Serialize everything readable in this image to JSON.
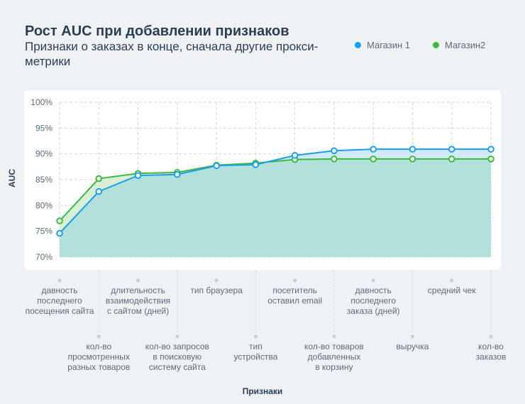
{
  "chart_data": {
    "type": "line",
    "title": "Рост AUC при добавлении признаков",
    "subtitle": "Признаки о заказах в конце, сначала другие прокси-метрики",
    "xlabel": "Признаки",
    "ylabel": "AUC",
    "ylim": [
      70,
      100
    ],
    "yticks": [
      "100%",
      "95%",
      "90%",
      "85%",
      "80%",
      "75%",
      "70%"
    ],
    "ytick_values": [
      100,
      95,
      90,
      85,
      80,
      75,
      70
    ],
    "grid": true,
    "legend_position": "top-right",
    "categories": [
      "давность последнего посещения сайта",
      "кол-во просмотренных разных товаров",
      "длительность взаимодействия с сайтом (дней)",
      "кол-во запросов в поисковую систему сайта",
      "тип браузера",
      "тип устройства",
      "посетитель оставил email",
      "кол-во товаров добавленных в корзину",
      "давность последнего заказа (дней)",
      "выручка",
      "средний чек",
      "кол-во заказов"
    ],
    "category_lines": [
      [
        "давность",
        "последнего",
        "посещения сайта"
      ],
      [
        "кол-во",
        "просмотренных",
        "разных товаров"
      ],
      [
        "длительность",
        "взаимодействия",
        "с сайтом (дней)"
      ],
      [
        "кол-во запросов",
        "в поисковую",
        "систему сайта"
      ],
      [
        "тип браузера"
      ],
      [
        "тип",
        "устройства"
      ],
      [
        "посетитель",
        "оставил email"
      ],
      [
        "кол-во товаров",
        "добавленных",
        "в корзину"
      ],
      [
        "давность",
        "последнего",
        "заказа (дней)"
      ],
      [
        "выручка"
      ],
      [
        "средний чек"
      ],
      [
        "кол-во",
        "заказов"
      ]
    ],
    "series": [
      {
        "name": "Магазин 1",
        "color": "#1a9ef0",
        "values": [
          74.6,
          82.7,
          85.8,
          86.0,
          87.7,
          87.9,
          89.7,
          90.6,
          90.9,
          90.9,
          90.9,
          90.9
        ]
      },
      {
        "name": "Магазин2",
        "color": "#3dbb3d",
        "values": [
          77.0,
          85.2,
          86.2,
          86.4,
          87.8,
          88.2,
          88.9,
          89.0,
          89.0,
          89.0,
          89.0,
          89.0
        ]
      }
    ]
  }
}
